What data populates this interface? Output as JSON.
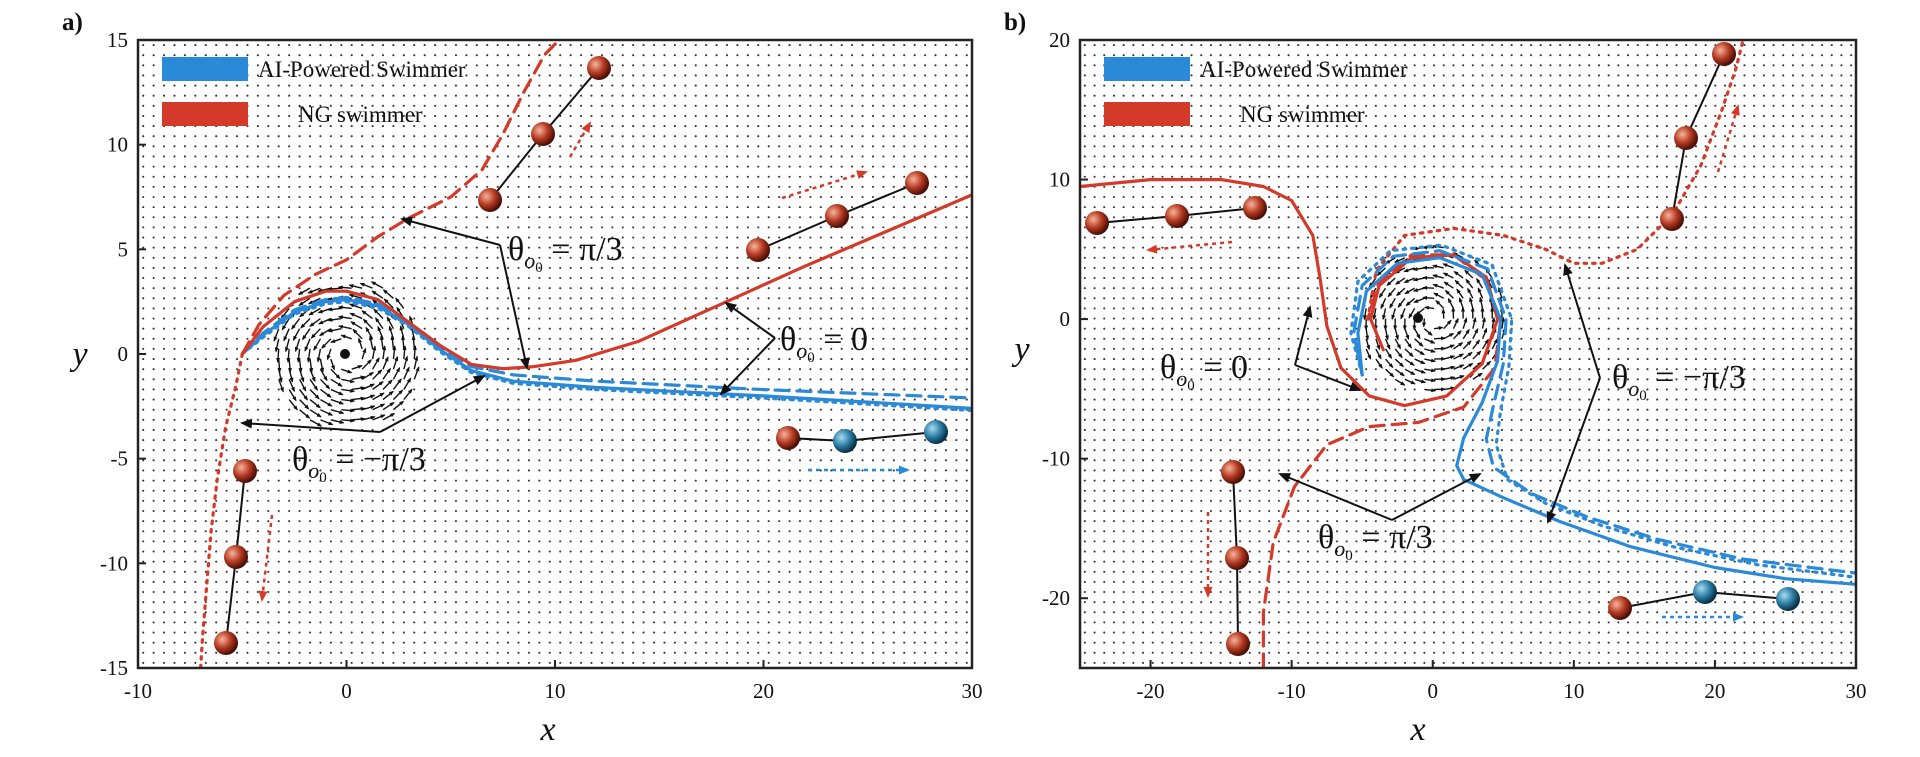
{
  "colors": {
    "ai": "#2a8ad8",
    "ng": "#d43a2a",
    "ink": "#111111"
  },
  "chart_data": [
    {
      "type": "line",
      "panel_label": "a)",
      "xlabel": "x",
      "ylabel": "y",
      "xlim": [
        -10,
        30
      ],
      "ylim": [
        -15,
        15
      ],
      "xticks": [
        -10,
        0,
        10,
        20,
        30
      ],
      "yticks": [
        15,
        10,
        5,
        0,
        -5,
        -10,
        -15
      ],
      "legend": [
        {
          "name": "AI-Powered Swimmer",
          "color": "#2a8ad8"
        },
        {
          "name": "NG swimmer",
          "color": "#d43a2a"
        }
      ],
      "vortex_center": [
        0,
        0
      ],
      "annotations": [
        {
          "text": "θ_{o0} = π/3",
          "at": [
            8,
            5
          ]
        },
        {
          "text": "θ_{o0} = 0",
          "at": [
            21,
            0.5
          ]
        },
        {
          "text": "θ_{o0} = −π/3",
          "at": [
            -2.5,
            -5
          ]
        }
      ],
      "series": [
        {
          "color": "#2a8ad8",
          "style": "solid",
          "points": [
            [
              -5,
              0
            ],
            [
              -4,
              0.9
            ],
            [
              -2.5,
              2
            ],
            [
              -1,
              2.5
            ],
            [
              0,
              2.6
            ],
            [
              1.5,
              2.3
            ],
            [
              3,
              1.4
            ],
            [
              4.5,
              0.2
            ],
            [
              6,
              -0.8
            ],
            [
              8,
              -1.3
            ],
            [
              12,
              -1.6
            ],
            [
              16,
              -1.8
            ],
            [
              20,
              -2.0
            ],
            [
              25,
              -2.3
            ],
            [
              30,
              -2.6
            ]
          ]
        },
        {
          "color": "#2a8ad8",
          "style": "dashed",
          "points": [
            [
              -5,
              0
            ],
            [
              -4,
              1.0
            ],
            [
              -2.5,
              2.1
            ],
            [
              -1,
              2.6
            ],
            [
              0,
              2.7
            ],
            [
              1.5,
              2.4
            ],
            [
              3,
              1.5
            ],
            [
              4.5,
              0.3
            ],
            [
              6,
              -0.6
            ],
            [
              8,
              -1.0
            ],
            [
              12,
              -1.3
            ],
            [
              16,
              -1.5
            ],
            [
              20,
              -1.7
            ],
            [
              25,
              -1.9
            ],
            [
              30,
              -2.1
            ]
          ]
        },
        {
          "color": "#2a8ad8",
          "style": "dotted",
          "points": [
            [
              -5,
              0
            ],
            [
              -4,
              0.8
            ],
            [
              -2.5,
              1.9
            ],
            [
              -1,
              2.4
            ],
            [
              0,
              2.5
            ],
            [
              1.5,
              2.2
            ],
            [
              3,
              1.3
            ],
            [
              4.5,
              0.1
            ],
            [
              6,
              -0.9
            ],
            [
              8,
              -1.4
            ],
            [
              12,
              -1.7
            ],
            [
              16,
              -1.9
            ],
            [
              20,
              -2.1
            ],
            [
              25,
              -2.4
            ],
            [
              30,
              -2.7
            ]
          ]
        },
        {
          "color": "#d43a2a",
          "style": "solid",
          "points": [
            [
              -5,
              0
            ],
            [
              -4,
              1.3
            ],
            [
              -2.5,
              2.5
            ],
            [
              -1,
              3.0
            ],
            [
              0,
              3.0
            ],
            [
              1.5,
              2.6
            ],
            [
              3,
              1.5
            ],
            [
              4.5,
              0.4
            ],
            [
              6,
              -0.5
            ],
            [
              7.5,
              -0.7
            ],
            [
              9,
              -0.6
            ],
            [
              11,
              -0.3
            ],
            [
              14,
              0.6
            ],
            [
              18,
              2.4
            ],
            [
              22,
              4.2
            ],
            [
              26,
              5.9
            ],
            [
              30,
              7.6
            ]
          ]
        },
        {
          "color": "#d43a2a",
          "style": "dashed",
          "points": [
            [
              -5,
              0
            ],
            [
              -4.2,
              1.4
            ],
            [
              -3,
              2.8
            ],
            [
              -1.5,
              3.8
            ],
            [
              0,
              4.5
            ],
            [
              1.5,
              5.6
            ],
            [
              3,
              6.5
            ],
            [
              5,
              7.5
            ],
            [
              6.5,
              8.8
            ],
            [
              7.5,
              10.5
            ],
            [
              8.5,
              12.5
            ],
            [
              9.5,
              14.3
            ],
            [
              10.2,
              15
            ]
          ]
        },
        {
          "color": "#d43a2a",
          "style": "dotted",
          "points": [
            [
              -5,
              0
            ],
            [
              -5.3,
              -1.5
            ],
            [
              -5.8,
              -3.5
            ],
            [
              -6.2,
              -6
            ],
            [
              -6.5,
              -8.5
            ],
            [
              -6.7,
              -11
            ],
            [
              -6.9,
              -13.5
            ],
            [
              -7,
              -15
            ]
          ]
        }
      ]
    },
    {
      "type": "line",
      "panel_label": "b)",
      "xlabel": "x",
      "ylabel": "y",
      "xlim": [
        -25,
        30
      ],
      "ylim": [
        -25,
        20
      ],
      "xticks": [
        -20,
        -10,
        0,
        10,
        20,
        30
      ],
      "yticks": [
        20,
        10,
        0,
        -10,
        -20
      ],
      "legend": [
        {
          "name": "AI-Powered Swimmer",
          "color": "#2a8ad8"
        },
        {
          "name": "NG swimmer",
          "color": "#d43a2a"
        }
      ],
      "vortex_center": [
        0,
        0
      ],
      "annotations": [
        {
          "text": "θ_{o0} = 0",
          "at": [
            -19,
            -3
          ]
        },
        {
          "text": "θ_{o0} = −π/3",
          "at": [
            13,
            -5
          ]
        },
        {
          "text": "θ_{o0} = π/3",
          "at": [
            -8,
            -17
          ]
        }
      ],
      "series": [
        {
          "color": "#d43a2a",
          "style": "solid",
          "points": [
            [
              -25,
              9.5
            ],
            [
              -20,
              10
            ],
            [
              -15,
              10
            ],
            [
              -12,
              9.5
            ],
            [
              -10,
              8.5
            ],
            [
              -8.5,
              6
            ],
            [
              -8,
              3
            ],
            [
              -7.5,
              -0.5
            ],
            [
              -6.5,
              -3.5
            ],
            [
              -4.5,
              -5.5
            ],
            [
              -2,
              -6.2
            ],
            [
              1,
              -5.5
            ],
            [
              3.5,
              -3.2
            ],
            [
              4.6,
              0
            ],
            [
              3.8,
              3
            ],
            [
              1.5,
              4.6
            ],
            [
              -1.5,
              4.4
            ],
            [
              -3.8,
              2.4
            ],
            [
              -4.4,
              0
            ],
            [
              -3.5,
              -2.2
            ]
          ]
        },
        {
          "color": "#d43a2a",
          "style": "dashed",
          "points": [
            [
              -12,
              -25
            ],
            [
              -12,
              -21
            ],
            [
              -11.3,
              -16
            ],
            [
              -9.8,
              -12
            ],
            [
              -7.5,
              -9
            ],
            [
              -4.5,
              -7.7
            ],
            [
              -1,
              -7.4
            ],
            [
              2.2,
              -6.3
            ],
            [
              4.4,
              -3.5
            ],
            [
              4.8,
              -0.2
            ],
            [
              3.8,
              2.8
            ],
            [
              1.5,
              4.6
            ],
            [
              -1.5,
              4.6
            ],
            [
              -3.8,
              2.7
            ],
            [
              -4.6,
              0
            ]
          ]
        },
        {
          "color": "#d43a2a",
          "style": "dotted",
          "points": [
            [
              -4.6,
              0
            ],
            [
              -4,
              3.5
            ],
            [
              -2,
              6
            ],
            [
              1.5,
              6.5
            ],
            [
              5,
              6
            ],
            [
              8,
              5
            ],
            [
              10,
              4
            ],
            [
              12,
              4
            ],
            [
              14.5,
              5
            ],
            [
              17,
              7.5
            ],
            [
              19,
              11
            ],
            [
              20.5,
              15
            ],
            [
              21.5,
              18
            ],
            [
              22,
              20
            ]
          ]
        },
        {
          "color": "#2a8ad8",
          "style": "solid",
          "points": [
            [
              -5,
              -4
            ],
            [
              -5.3,
              -1
            ],
            [
              -4.7,
              2
            ],
            [
              -2.5,
              4
            ],
            [
              0.5,
              4.4
            ],
            [
              3.5,
              3.2
            ],
            [
              4.8,
              0
            ],
            [
              4.6,
              -3
            ],
            [
              3.5,
              -6
            ],
            [
              2.2,
              -8.5
            ],
            [
              1.7,
              -10.5
            ],
            [
              2.2,
              -11.5
            ],
            [
              5,
              -12.8
            ],
            [
              9,
              -14.5
            ],
            [
              14,
              -16.3
            ],
            [
              20,
              -17.8
            ],
            [
              25,
              -18.6
            ],
            [
              30,
              -19
            ]
          ]
        },
        {
          "color": "#2a8ad8",
          "style": "dashed",
          "points": [
            [
              -5,
              -4
            ],
            [
              -5.6,
              -1
            ],
            [
              -5,
              2.4
            ],
            [
              -2.8,
              4.5
            ],
            [
              0.5,
              4.9
            ],
            [
              3.9,
              3.6
            ],
            [
              5.2,
              0
            ],
            [
              5,
              -3.2
            ],
            [
              4.3,
              -6.2
            ],
            [
              3.8,
              -8.6
            ],
            [
              4.3,
              -10.6
            ],
            [
              7,
              -12.5
            ],
            [
              11,
              -14.2
            ],
            [
              16,
              -15.8
            ],
            [
              22,
              -17.2
            ],
            [
              30,
              -18.2
            ]
          ]
        },
        {
          "color": "#2a8ad8",
          "style": "dotted",
          "points": [
            [
              -5,
              -4
            ],
            [
              -5.8,
              -1
            ],
            [
              -5.3,
              2.7
            ],
            [
              -3,
              4.9
            ],
            [
              0.6,
              5.3
            ],
            [
              4.2,
              3.9
            ],
            [
              5.6,
              0
            ],
            [
              5.4,
              -3.4
            ],
            [
              4.8,
              -6.6
            ],
            [
              4.5,
              -9
            ],
            [
              5.3,
              -11.5
            ],
            [
              8,
              -13.2
            ],
            [
              12,
              -14.8
            ],
            [
              17,
              -16.3
            ],
            [
              23,
              -17.6
            ],
            [
              30,
              -18.5
            ]
          ]
        }
      ]
    }
  ]
}
